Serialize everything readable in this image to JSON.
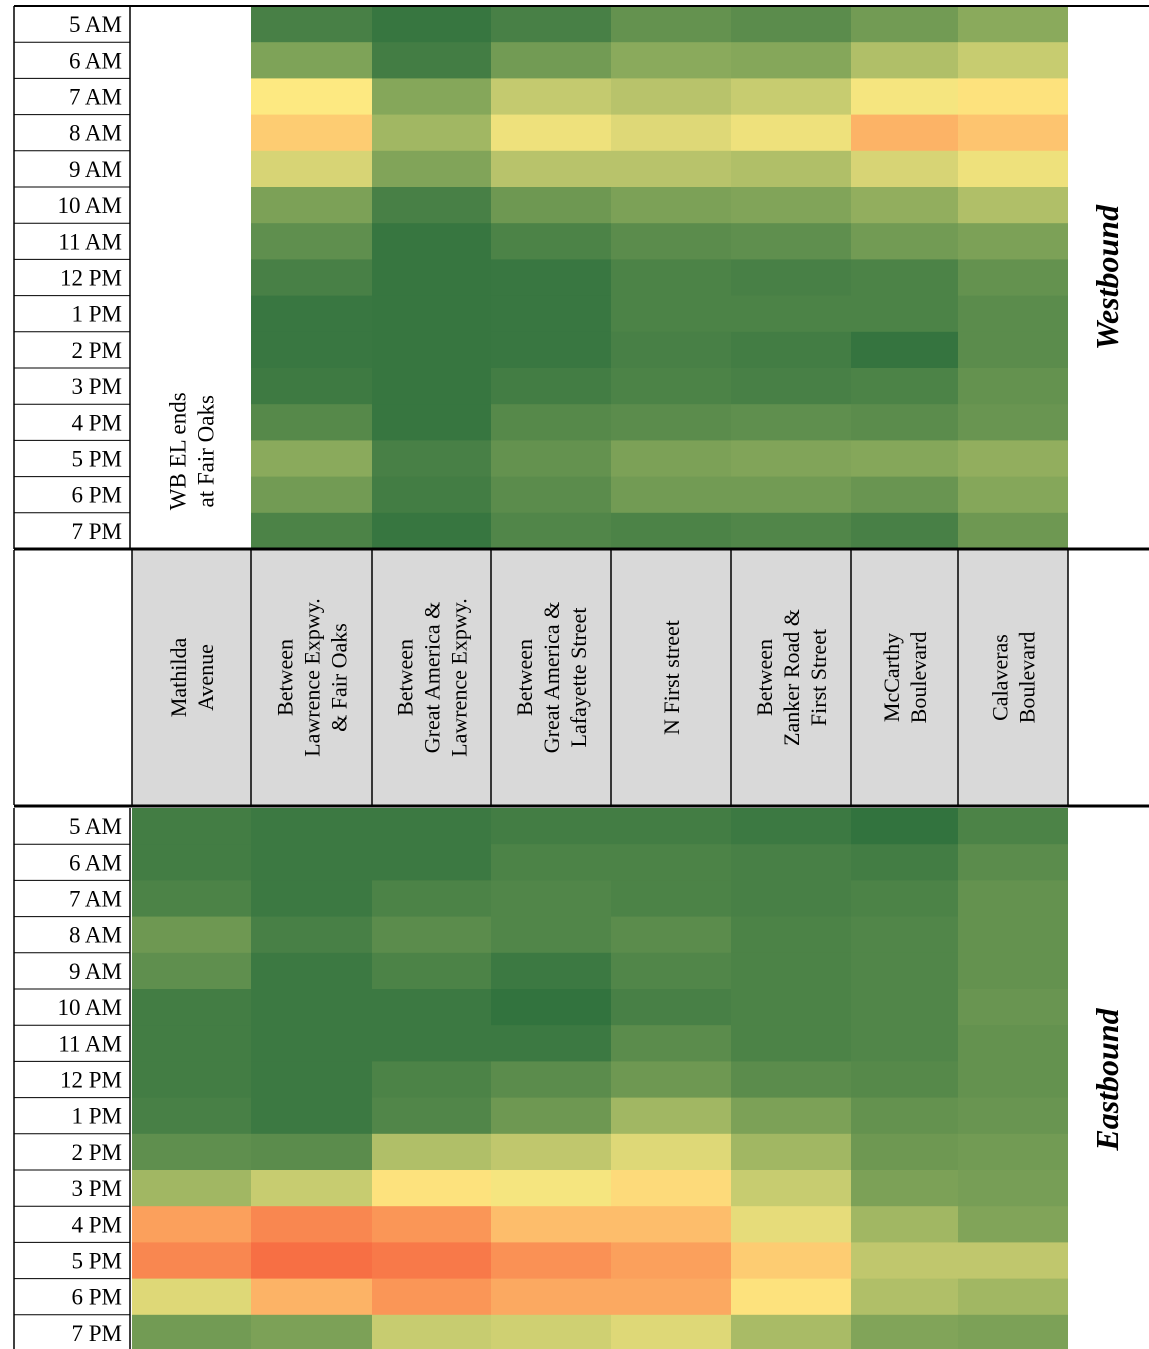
{
  "chart_data": {
    "type": "heatmap",
    "locations": [
      [
        "Mathilda",
        "Avenue"
      ],
      [
        "Between",
        "Lawrence Expwy.",
        "& Fair Oaks"
      ],
      [
        "Between",
        "Great America &",
        "Lawrence Expwy."
      ],
      [
        "Between",
        "Great America &",
        "Lafayette Street"
      ],
      [
        "N First street"
      ],
      [
        "Between",
        "Zanker Road &",
        "First Street"
      ],
      [
        "McCarthy",
        "Boulevard"
      ],
      [
        "Calaveras",
        "Boulevard"
      ]
    ],
    "times": [
      "5 AM",
      "6 AM",
      "7 AM",
      "8 AM",
      "9 AM",
      "10 AM",
      "11 AM",
      "12 PM",
      "1 PM",
      "2 PM",
      "3 PM",
      "4 PM",
      "5 PM",
      "6 PM",
      "7 PM"
    ],
    "color_scale": {
      "low": "#2b6e3c",
      "mid1": "#8aaa5c",
      "mid2": "#fde981",
      "mid3": "#fdbd6b",
      "high": "#f6653f"
    },
    "panels": [
      {
        "direction": "Westbound",
        "note": [
          "WB EL ends",
          "at Fair Oaks"
        ],
        "values": [
          [
            null,
            0.12,
            0.05,
            0.12,
            0.24,
            0.2,
            0.3,
            0.4
          ],
          [
            null,
            0.35,
            0.1,
            0.3,
            0.4,
            0.38,
            0.5,
            0.56
          ],
          [
            null,
            0.7,
            0.38,
            0.55,
            0.52,
            0.56,
            0.68,
            0.72
          ],
          [
            null,
            0.78,
            0.46,
            0.66,
            0.62,
            0.66,
            0.84,
            0.8
          ],
          [
            null,
            0.6,
            0.36,
            0.52,
            0.52,
            0.5,
            0.6,
            0.66
          ],
          [
            null,
            0.34,
            0.12,
            0.28,
            0.34,
            0.36,
            0.42,
            0.5
          ],
          [
            null,
            0.22,
            0.05,
            0.14,
            0.2,
            0.22,
            0.3,
            0.34
          ],
          [
            null,
            0.12,
            0.05,
            0.06,
            0.14,
            0.12,
            0.14,
            0.24
          ],
          [
            null,
            0.06,
            0.05,
            0.06,
            0.14,
            0.14,
            0.14,
            0.2
          ],
          [
            null,
            0.06,
            0.05,
            0.06,
            0.12,
            0.1,
            0.04,
            0.2
          ],
          [
            null,
            0.08,
            0.05,
            0.1,
            0.14,
            0.12,
            0.14,
            0.24
          ],
          [
            null,
            0.18,
            0.05,
            0.18,
            0.2,
            0.22,
            0.2,
            0.26
          ],
          [
            null,
            0.4,
            0.12,
            0.24,
            0.34,
            0.36,
            0.38,
            0.42
          ],
          [
            null,
            0.3,
            0.1,
            0.2,
            0.3,
            0.3,
            0.26,
            0.38
          ],
          [
            null,
            0.14,
            0.05,
            0.16,
            0.14,
            0.16,
            0.12,
            0.28
          ]
        ]
      },
      {
        "direction": "Eastbound",
        "note": [],
        "values": [
          [
            0.1,
            0.07,
            0.07,
            0.1,
            0.1,
            0.07,
            0.03,
            0.14
          ],
          [
            0.1,
            0.07,
            0.07,
            0.14,
            0.14,
            0.12,
            0.1,
            0.2
          ],
          [
            0.14,
            0.07,
            0.14,
            0.16,
            0.14,
            0.12,
            0.14,
            0.24
          ],
          [
            0.28,
            0.12,
            0.2,
            0.16,
            0.2,
            0.14,
            0.16,
            0.24
          ],
          [
            0.22,
            0.07,
            0.14,
            0.07,
            0.16,
            0.14,
            0.16,
            0.24
          ],
          [
            0.1,
            0.07,
            0.07,
            0.03,
            0.12,
            0.14,
            0.16,
            0.26
          ],
          [
            0.1,
            0.07,
            0.07,
            0.07,
            0.2,
            0.14,
            0.16,
            0.24
          ],
          [
            0.1,
            0.07,
            0.14,
            0.2,
            0.28,
            0.2,
            0.18,
            0.24
          ],
          [
            0.12,
            0.07,
            0.16,
            0.28,
            0.46,
            0.34,
            0.24,
            0.26
          ],
          [
            0.22,
            0.2,
            0.5,
            0.54,
            0.62,
            0.46,
            0.28,
            0.3
          ],
          [
            0.46,
            0.56,
            0.72,
            0.68,
            0.74,
            0.56,
            0.34,
            0.32
          ],
          [
            0.88,
            0.93,
            0.9,
            0.82,
            0.82,
            0.64,
            0.46,
            0.36
          ],
          [
            0.93,
            0.98,
            0.96,
            0.91,
            0.88,
            0.78,
            0.54,
            0.54
          ],
          [
            0.62,
            0.84,
            0.9,
            0.86,
            0.86,
            0.72,
            0.5,
            0.46
          ],
          [
            0.3,
            0.34,
            0.56,
            0.58,
            0.62,
            0.48,
            0.36,
            0.34
          ]
        ]
      }
    ]
  }
}
